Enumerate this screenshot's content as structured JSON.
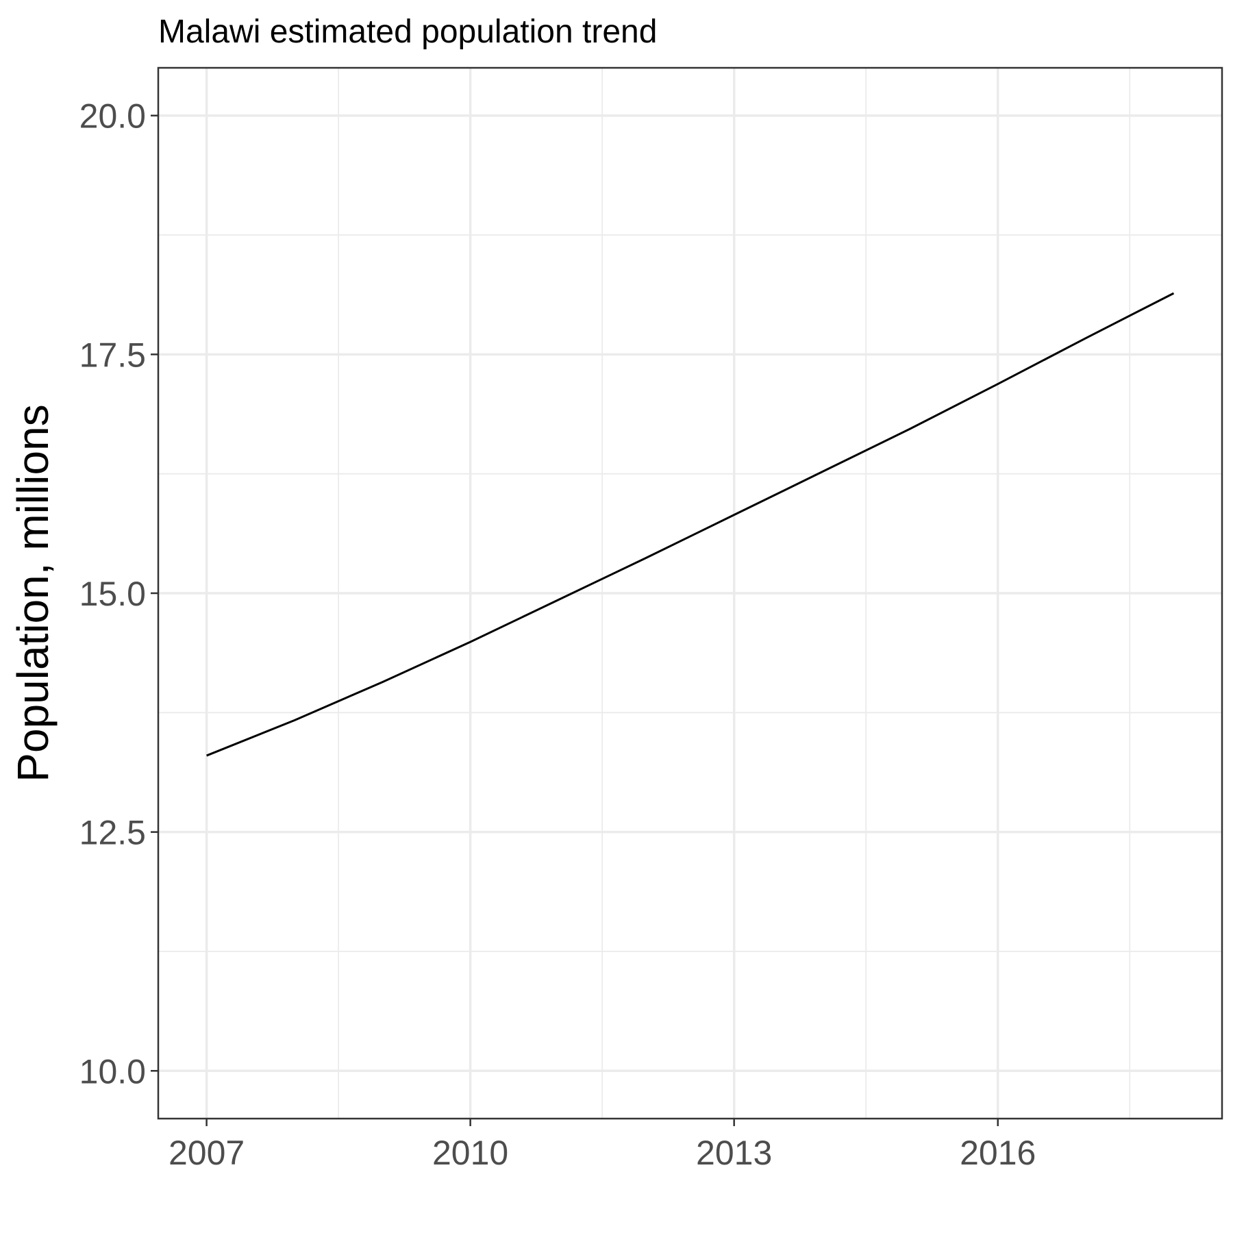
{
  "chart_data": {
    "type": "line",
    "title": "Malawi estimated population trend",
    "xlabel": "",
    "ylabel": "Population, millions",
    "xlim": [
      2006.45,
      2018.55
    ],
    "ylim": [
      9.5,
      20.5
    ],
    "x_ticks": [
      2007,
      2010,
      2013,
      2016
    ],
    "x_tick_labels": [
      "2007",
      "2010",
      "2013",
      "2016"
    ],
    "x_minor_ticks": [
      2008.5,
      2011.5,
      2014.5,
      2017.5
    ],
    "y_ticks": [
      10.0,
      12.5,
      15.0,
      17.5,
      20.0
    ],
    "y_tick_labels": [
      "10.0",
      "12.5",
      "15.0",
      "17.5",
      "20.0"
    ],
    "y_minor_ticks": [
      11.25,
      13.75,
      16.25,
      18.75
    ],
    "grid": true,
    "legend": "none",
    "series": [
      {
        "color": "#000000",
        "x": [
          2007,
          2008,
          2009,
          2010,
          2011,
          2012,
          2013,
          2014,
          2015,
          2016,
          2017,
          2018
        ],
        "y": [
          13.3,
          13.67,
          14.07,
          14.49,
          14.93,
          15.37,
          15.82,
          16.27,
          16.72,
          17.19,
          17.67,
          18.14
        ]
      }
    ]
  }
}
